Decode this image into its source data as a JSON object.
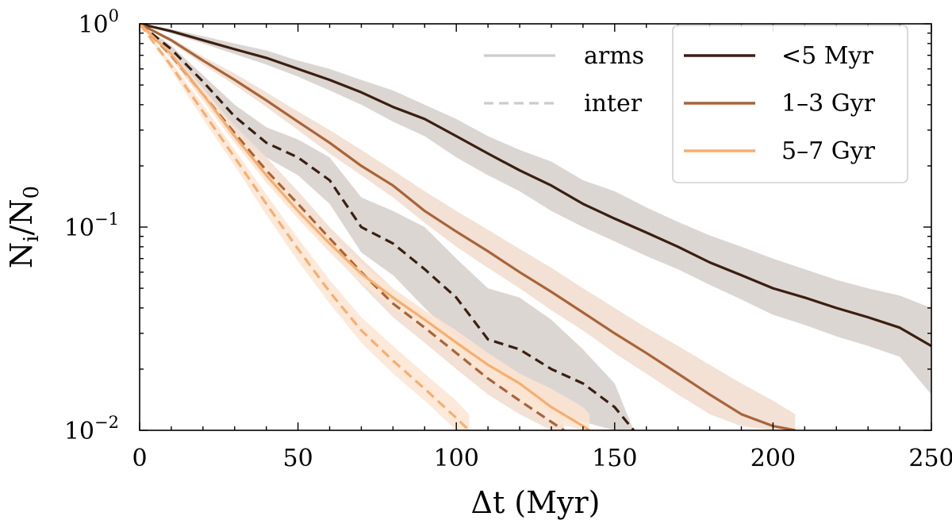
{
  "chart_data": {
    "type": "line",
    "xlabel": "Δt (Myr)",
    "ylabel": "N_i/N_0",
    "x_scale": "linear",
    "y_scale": "log",
    "xlim": [
      0,
      250
    ],
    "ylim": [
      0.01,
      1.0
    ],
    "x_ticks": [
      0,
      50,
      100,
      150,
      200,
      250
    ],
    "x_tick_labels": [
      "0",
      "50",
      "100",
      "150",
      "200",
      "250"
    ],
    "y_ticks": [
      1.0,
      0.1,
      0.01
    ],
    "y_tick_labels": [
      {
        "base": "10",
        "exp": "0"
      },
      {
        "base": "10",
        "exp": "−1"
      },
      {
        "base": "10",
        "exp": "−2"
      }
    ],
    "legend_style": {
      "location": "top-right",
      "entries": [
        {
          "label": "arms",
          "dash": "solid",
          "color": "#cccccc"
        },
        {
          "label": "inter",
          "dash": "dashed",
          "color": "#cccccc"
        }
      ]
    },
    "legend_age": {
      "location": "top-right",
      "entries": [
        {
          "label": "<5 Myr",
          "color": "#3b1f10"
        },
        {
          "label": "1–3 Gyr",
          "color": "#a9643a"
        },
        {
          "label": "5–7 Gyr",
          "color": "#f7ae6e"
        }
      ]
    },
    "series": [
      {
        "name": "<5 Myr arms",
        "color": "#3b1f10",
        "dash": "solid",
        "band_color": "#d6cfcb",
        "x": [
          0,
          10,
          20,
          30,
          40,
          50,
          60,
          70,
          80,
          90,
          100,
          110,
          120,
          130,
          140,
          150,
          160,
          170,
          180,
          190,
          200,
          210,
          220,
          230,
          240,
          250
        ],
        "y": [
          1.0,
          0.92,
          0.83,
          0.75,
          0.68,
          0.6,
          0.53,
          0.46,
          0.39,
          0.34,
          0.28,
          0.23,
          0.19,
          0.16,
          0.13,
          0.11,
          0.094,
          0.08,
          0.067,
          0.058,
          0.05,
          0.045,
          0.04,
          0.036,
          0.032,
          0.026
        ],
        "y_low": [
          1.0,
          0.9,
          0.8,
          0.71,
          0.63,
          0.55,
          0.47,
          0.4,
          0.33,
          0.28,
          0.22,
          0.18,
          0.15,
          0.12,
          0.1,
          0.085,
          0.072,
          0.062,
          0.052,
          0.044,
          0.037,
          0.033,
          0.029,
          0.026,
          0.023,
          0.015
        ],
        "y_high": [
          1.0,
          0.94,
          0.87,
          0.8,
          0.74,
          0.66,
          0.6,
          0.53,
          0.47,
          0.4,
          0.34,
          0.28,
          0.24,
          0.21,
          0.17,
          0.15,
          0.125,
          0.106,
          0.091,
          0.08,
          0.07,
          0.062,
          0.055,
          0.05,
          0.046,
          0.04
        ]
      },
      {
        "name": "<5 Myr inter",
        "color": "#3b1f10",
        "dash": "dashed",
        "band_color": "#d6cfcb",
        "x": [
          0,
          10,
          20,
          30,
          40,
          50,
          60,
          70,
          80,
          90,
          100,
          110,
          120,
          130,
          140,
          150,
          156
        ],
        "y": [
          1.0,
          0.75,
          0.52,
          0.35,
          0.26,
          0.22,
          0.17,
          0.1,
          0.083,
          0.062,
          0.045,
          0.028,
          0.025,
          0.02,
          0.017,
          0.013,
          0.01
        ],
        "y_low": [
          1.0,
          0.72,
          0.48,
          0.31,
          0.22,
          0.18,
          0.13,
          0.075,
          0.058,
          0.04,
          0.028,
          0.018,
          0.015,
          0.012,
          0.011,
          0.01,
          0.01
        ],
        "y_high": [
          1.0,
          0.78,
          0.56,
          0.4,
          0.31,
          0.27,
          0.22,
          0.14,
          0.12,
          0.1,
          0.07,
          0.05,
          0.045,
          0.035,
          0.025,
          0.017,
          0.01
        ]
      },
      {
        "name": "1–3 Gyr arms",
        "color": "#a9643a",
        "dash": "solid",
        "band_color": "#f0dccd",
        "x": [
          0,
          10,
          20,
          30,
          40,
          50,
          60,
          70,
          80,
          90,
          100,
          110,
          120,
          130,
          140,
          150,
          160,
          170,
          180,
          190,
          200,
          207
        ],
        "y": [
          1.0,
          0.83,
          0.66,
          0.53,
          0.42,
          0.33,
          0.26,
          0.2,
          0.16,
          0.12,
          0.095,
          0.076,
          0.06,
          0.048,
          0.038,
          0.03,
          0.024,
          0.019,
          0.015,
          0.012,
          0.0105,
          0.01
        ],
        "y_low": [
          1.0,
          0.81,
          0.63,
          0.5,
          0.39,
          0.3,
          0.23,
          0.18,
          0.14,
          0.105,
          0.08,
          0.063,
          0.05,
          0.039,
          0.031,
          0.024,
          0.019,
          0.015,
          0.012,
          0.0105,
          0.01,
          0.01
        ],
        "y_high": [
          1.0,
          0.85,
          0.69,
          0.57,
          0.46,
          0.37,
          0.3,
          0.24,
          0.19,
          0.15,
          0.12,
          0.097,
          0.078,
          0.063,
          0.05,
          0.04,
          0.032,
          0.026,
          0.021,
          0.017,
          0.014,
          0.012
        ]
      },
      {
        "name": "1–3 Gyr inter",
        "color": "#a9643a",
        "dash": "dashed",
        "band_color": "#f0dccd",
        "x": [
          0,
          10,
          20,
          30,
          40,
          50,
          60,
          70,
          80,
          90,
          100,
          110,
          120,
          130,
          134
        ],
        "y": [
          1.0,
          0.7,
          0.45,
          0.29,
          0.19,
          0.13,
          0.088,
          0.06,
          0.042,
          0.032,
          0.024,
          0.018,
          0.014,
          0.011,
          0.01
        ],
        "y_low": [
          1.0,
          0.67,
          0.42,
          0.26,
          0.17,
          0.115,
          0.077,
          0.052,
          0.036,
          0.027,
          0.02,
          0.015,
          0.012,
          0.01,
          0.01
        ],
        "y_high": [
          1.0,
          0.73,
          0.48,
          0.32,
          0.22,
          0.15,
          0.1,
          0.07,
          0.05,
          0.038,
          0.029,
          0.022,
          0.017,
          0.013,
          0.012
        ]
      },
      {
        "name": "5–7 Gyr arms",
        "color": "#f7ae6e",
        "dash": "solid",
        "band_color": "#fde5d2",
        "x": [
          0,
          10,
          20,
          30,
          40,
          50,
          60,
          70,
          80,
          90,
          100,
          110,
          120,
          130,
          140,
          142
        ],
        "y": [
          1.0,
          0.71,
          0.45,
          0.28,
          0.18,
          0.12,
          0.083,
          0.059,
          0.045,
          0.035,
          0.027,
          0.021,
          0.017,
          0.013,
          0.0105,
          0.01
        ],
        "y_low": [
          1.0,
          0.69,
          0.42,
          0.26,
          0.165,
          0.11,
          0.075,
          0.053,
          0.04,
          0.031,
          0.024,
          0.018,
          0.014,
          0.011,
          0.01,
          0.01
        ],
        "y_high": [
          1.0,
          0.73,
          0.48,
          0.3,
          0.2,
          0.133,
          0.092,
          0.066,
          0.05,
          0.039,
          0.031,
          0.024,
          0.019,
          0.016,
          0.013,
          0.012
        ]
      },
      {
        "name": "5–7 Gyr inter",
        "color": "#f7ae6e",
        "dash": "dashed",
        "band_color": "#fde5d2",
        "x": [
          0,
          10,
          20,
          30,
          40,
          50,
          60,
          70,
          80,
          90,
          100,
          104
        ],
        "y": [
          1.0,
          0.62,
          0.37,
          0.22,
          0.13,
          0.078,
          0.048,
          0.031,
          0.022,
          0.016,
          0.0115,
          0.01
        ],
        "y_low": [
          1.0,
          0.59,
          0.34,
          0.2,
          0.115,
          0.068,
          0.042,
          0.027,
          0.019,
          0.014,
          0.01,
          0.01
        ],
        "y_high": [
          1.0,
          0.65,
          0.4,
          0.24,
          0.145,
          0.088,
          0.055,
          0.036,
          0.026,
          0.019,
          0.014,
          0.012
        ]
      }
    ]
  }
}
